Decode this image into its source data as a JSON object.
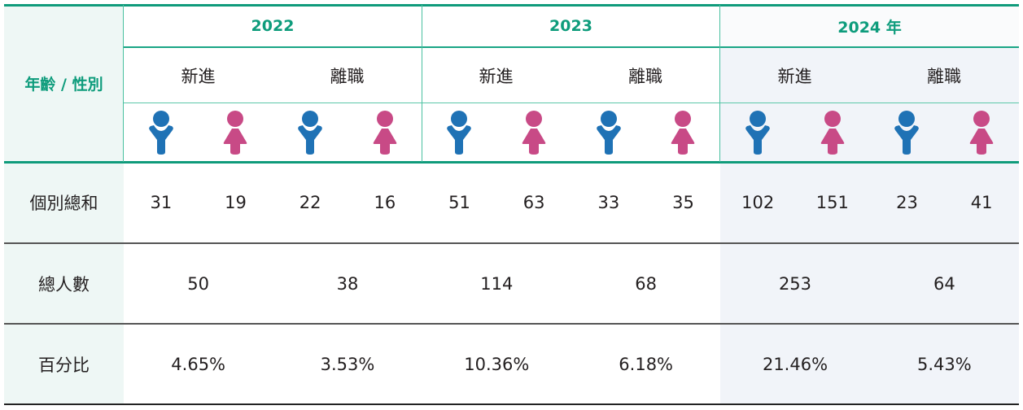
{
  "table": {
    "corner_label": "年齡 / 性別",
    "years": [
      {
        "label": "2022",
        "sub": [
          "新進",
          "離職"
        ]
      },
      {
        "label": "2023",
        "sub": [
          "新進",
          "離職"
        ]
      },
      {
        "label": "2024 年",
        "sub": [
          "新進",
          "離職"
        ]
      }
    ],
    "gender_icons": [
      "male-icon",
      "female-icon"
    ],
    "colors": {
      "male": "#1f72b5",
      "female": "#c84a86",
      "accent": "#0e9c7c",
      "highlight_bg": "#f1f4f9",
      "label_bg": "#eef7f5"
    },
    "rows": [
      {
        "label": "個別總和",
        "values": [
          "31",
          "19",
          "22",
          "16",
          "51",
          "63",
          "33",
          "35",
          "102",
          "151",
          "23",
          "41"
        ]
      },
      {
        "label": "總人數",
        "values": [
          "50",
          "38",
          "114",
          "68",
          "253",
          "64"
        ]
      },
      {
        "label": "百分比",
        "values": [
          "4.65%",
          "3.53%",
          "10.36%",
          "6.18%",
          "21.46%",
          "5.43%"
        ]
      }
    ]
  }
}
